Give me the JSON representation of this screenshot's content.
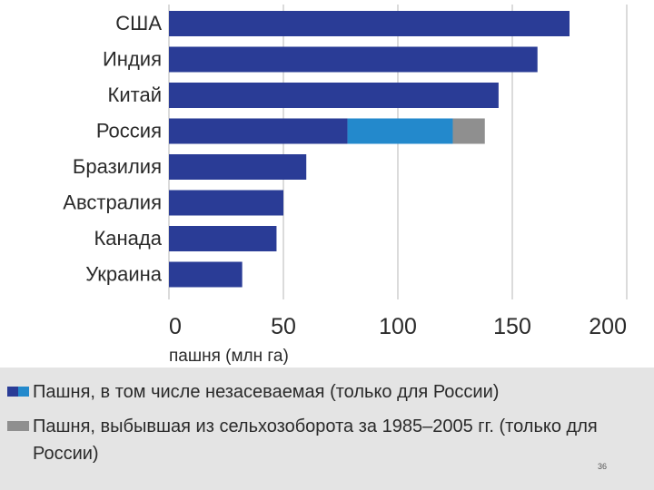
{
  "chart_data": {
    "type": "bar",
    "orientation": "horizontal",
    "stacked": true,
    "categories": [
      "США",
      "Индия",
      "Китай",
      "Россия",
      "Бразилия",
      "Австралия",
      "Канада",
      "Украина"
    ],
    "series": [
      {
        "values": [
          175,
          161,
          144,
          78,
          60,
          50,
          47,
          32
        ],
        "color": "#2a3c96"
      },
      {
        "values": [
          0,
          0,
          0,
          46,
          0,
          0,
          0,
          0
        ],
        "color": "#2389cc"
      },
      {
        "values": [
          0,
          0,
          0,
          14,
          0,
          0,
          0,
          0
        ],
        "color": "#8f8f8f"
      }
    ],
    "x_ticks": [
      "0",
      "50",
      "100",
      "150",
      "200"
    ],
    "xlim": [
      0,
      200
    ],
    "xlabel": "пашня (млн га)",
    "grid": true
  },
  "legend": {
    "items": [
      {
        "text": "Пашня, в том числе незасеваемая (только для России)",
        "colors": [
          "#2a3c96",
          "#2389cc"
        ]
      },
      {
        "text": "Пашня, выбывшая из сельхозоборота за 1985–2005 гг. (только для России)",
        "colors": [
          "#8f8f8f"
        ]
      }
    ]
  },
  "slide_number": "36"
}
